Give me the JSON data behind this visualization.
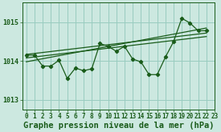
{
  "title": "Graphe pression niveau de la mer (hPa)",
  "bg_color": "#cce8e0",
  "grid_color": "#99ccc0",
  "line_color": "#1a5c1a",
  "xlim": [
    -0.5,
    23
  ],
  "ylim": [
    1012.75,
    1015.5
  ],
  "yticks": [
    1013,
    1014,
    1015
  ],
  "xticks": [
    0,
    1,
    2,
    3,
    4,
    5,
    6,
    7,
    8,
    9,
    10,
    11,
    12,
    13,
    14,
    15,
    16,
    17,
    18,
    19,
    20,
    21,
    22,
    23
  ],
  "main_data": [
    [
      0,
      1014.15
    ],
    [
      1,
      1014.15
    ],
    [
      2,
      1013.87
    ],
    [
      3,
      1013.87
    ],
    [
      4,
      1014.02
    ],
    [
      5,
      1013.55
    ],
    [
      6,
      1013.82
    ],
    [
      7,
      1013.75
    ],
    [
      8,
      1013.8
    ],
    [
      9,
      1014.45
    ],
    [
      10,
      1014.38
    ],
    [
      11,
      1014.25
    ],
    [
      12,
      1014.38
    ],
    [
      13,
      1014.05
    ],
    [
      14,
      1013.98
    ],
    [
      15,
      1013.65
    ],
    [
      16,
      1013.65
    ],
    [
      17,
      1014.1
    ],
    [
      18,
      1014.5
    ],
    [
      19,
      1015.1
    ],
    [
      20,
      1014.98
    ],
    [
      21,
      1014.78
    ],
    [
      22,
      1014.78
    ]
  ],
  "trend_lines": [
    [
      [
        0,
        1014.17
      ],
      [
        22,
        1014.72
      ]
    ],
    [
      [
        0,
        1014.08
      ],
      [
        22,
        1014.63
      ]
    ],
    [
      [
        0,
        1013.98
      ],
      [
        22,
        1014.85
      ]
    ]
  ],
  "font_size_title": 7.5,
  "font_size_tick": 6.0,
  "figwidth": 2.75,
  "figheight": 1.65,
  "dpi": 100
}
